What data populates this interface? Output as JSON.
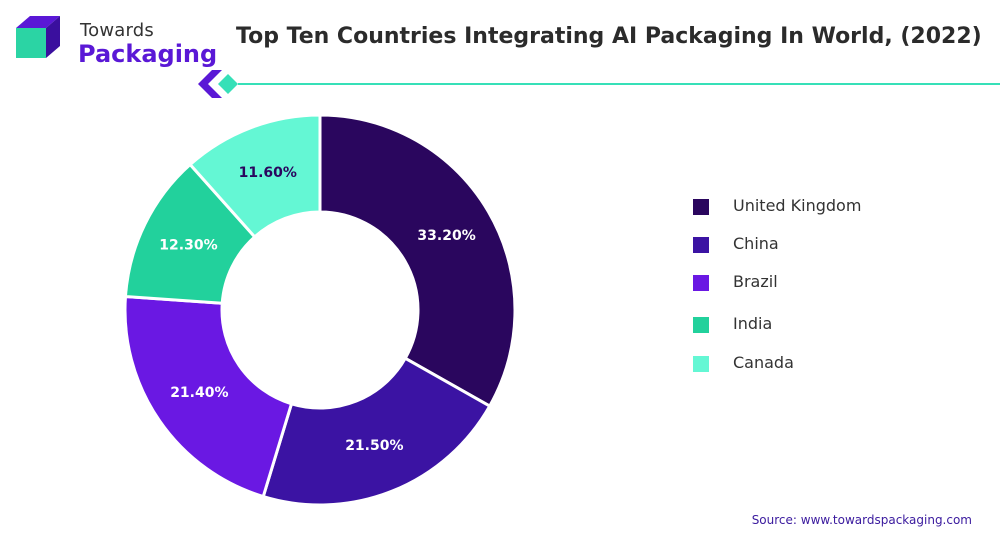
{
  "brand": {
    "line1": "Towards",
    "line2": "Packaging",
    "colors": {
      "dark": "#5a18d6",
      "light": "#2bd4a4",
      "accent": "#36e0b8"
    }
  },
  "header": {
    "title": "Top Ten Countries Integrating AI Packaging In World, (2022)"
  },
  "chart_data": {
    "type": "pie",
    "donut": true,
    "title": "Top Ten Countries Integrating AI Packaging In World, (2022)",
    "legend_position": "right",
    "slices": [
      {
        "name": "United Kingdom",
        "value": 33.2,
        "label": "33.20%",
        "color": "#2a065e",
        "label_color": "#ffffff"
      },
      {
        "name": "China",
        "value": 21.5,
        "label": "21.50%",
        "color": "#3b13a3",
        "label_color": "#ffffff"
      },
      {
        "name": "Brazil",
        "value": 21.4,
        "label": "21.40%",
        "color": "#6a18e3",
        "label_color": "#ffffff"
      },
      {
        "name": "India",
        "value": 12.3,
        "label": "12.30%",
        "color": "#22d19c",
        "label_color": "#ffffff"
      },
      {
        "name": "Canada",
        "value": 11.6,
        "label": "11.60%",
        "color": "#64f7d4",
        "label_color": "#2a065e"
      }
    ]
  },
  "legend": {
    "items": [
      {
        "label": "United Kingdom",
        "color": "#2a065e"
      },
      {
        "label": "China",
        "color": "#3b13a3"
      },
      {
        "label": "Brazil",
        "color": "#6a18e3"
      },
      {
        "label": "India",
        "color": "#22d19c"
      },
      {
        "label": "Canada",
        "color": "#64f7d4"
      }
    ]
  },
  "footer": {
    "source": "Source: www.towardspackaging.com"
  }
}
